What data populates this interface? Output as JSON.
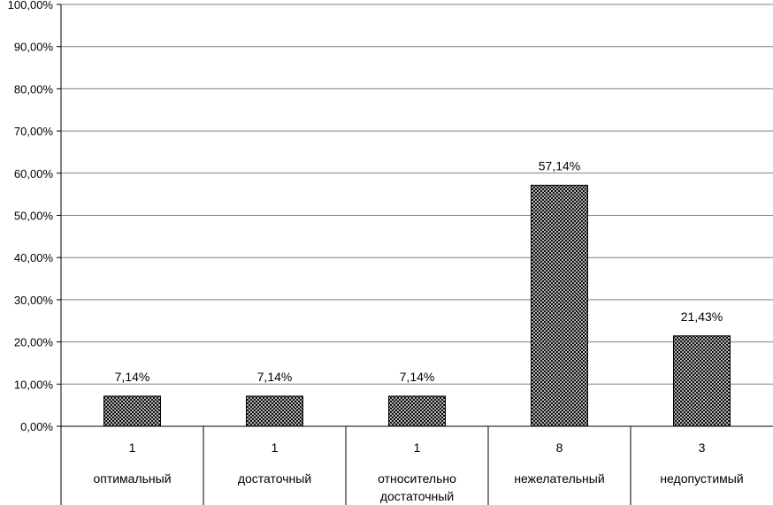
{
  "chart_data": {
    "type": "bar",
    "categories": [
      {
        "count": "1",
        "label_lines": [
          "оптимальный"
        ]
      },
      {
        "count": "1",
        "label_lines": [
          "достаточный"
        ]
      },
      {
        "count": "1",
        "label_lines": [
          "относительно",
          "достаточный"
        ]
      },
      {
        "count": "8",
        "label_lines": [
          "нежелательный"
        ]
      },
      {
        "count": "3",
        "label_lines": [
          "недопустимый"
        ]
      }
    ],
    "values": [
      7.14,
      7.14,
      7.14,
      57.14,
      21.43
    ],
    "data_labels": [
      "7,14%",
      "7,14%",
      "7,14%",
      "57,14%",
      "21,43%"
    ],
    "y_ticks": [
      {
        "value": 0,
        "label": "0,00%"
      },
      {
        "value": 10,
        "label": "10,00%"
      },
      {
        "value": 20,
        "label": "20,00%"
      },
      {
        "value": 30,
        "label": "30,00%"
      },
      {
        "value": 40,
        "label": "40,00%"
      },
      {
        "value": 50,
        "label": "50,00%"
      },
      {
        "value": 60,
        "label": "60,00%"
      },
      {
        "value": 70,
        "label": "70,00%"
      },
      {
        "value": 80,
        "label": "80,00%"
      },
      {
        "value": 90,
        "label": "90,00%"
      },
      {
        "value": 100,
        "label": "100,00%"
      }
    ],
    "ylim": [
      0,
      100
    ],
    "grid": true,
    "title": "",
    "xlabel": "",
    "ylabel": "",
    "colors": {
      "bar_pattern": "#000000",
      "bar_background": "#ffffff",
      "grid": "#808080",
      "axis": "#000000"
    }
  }
}
